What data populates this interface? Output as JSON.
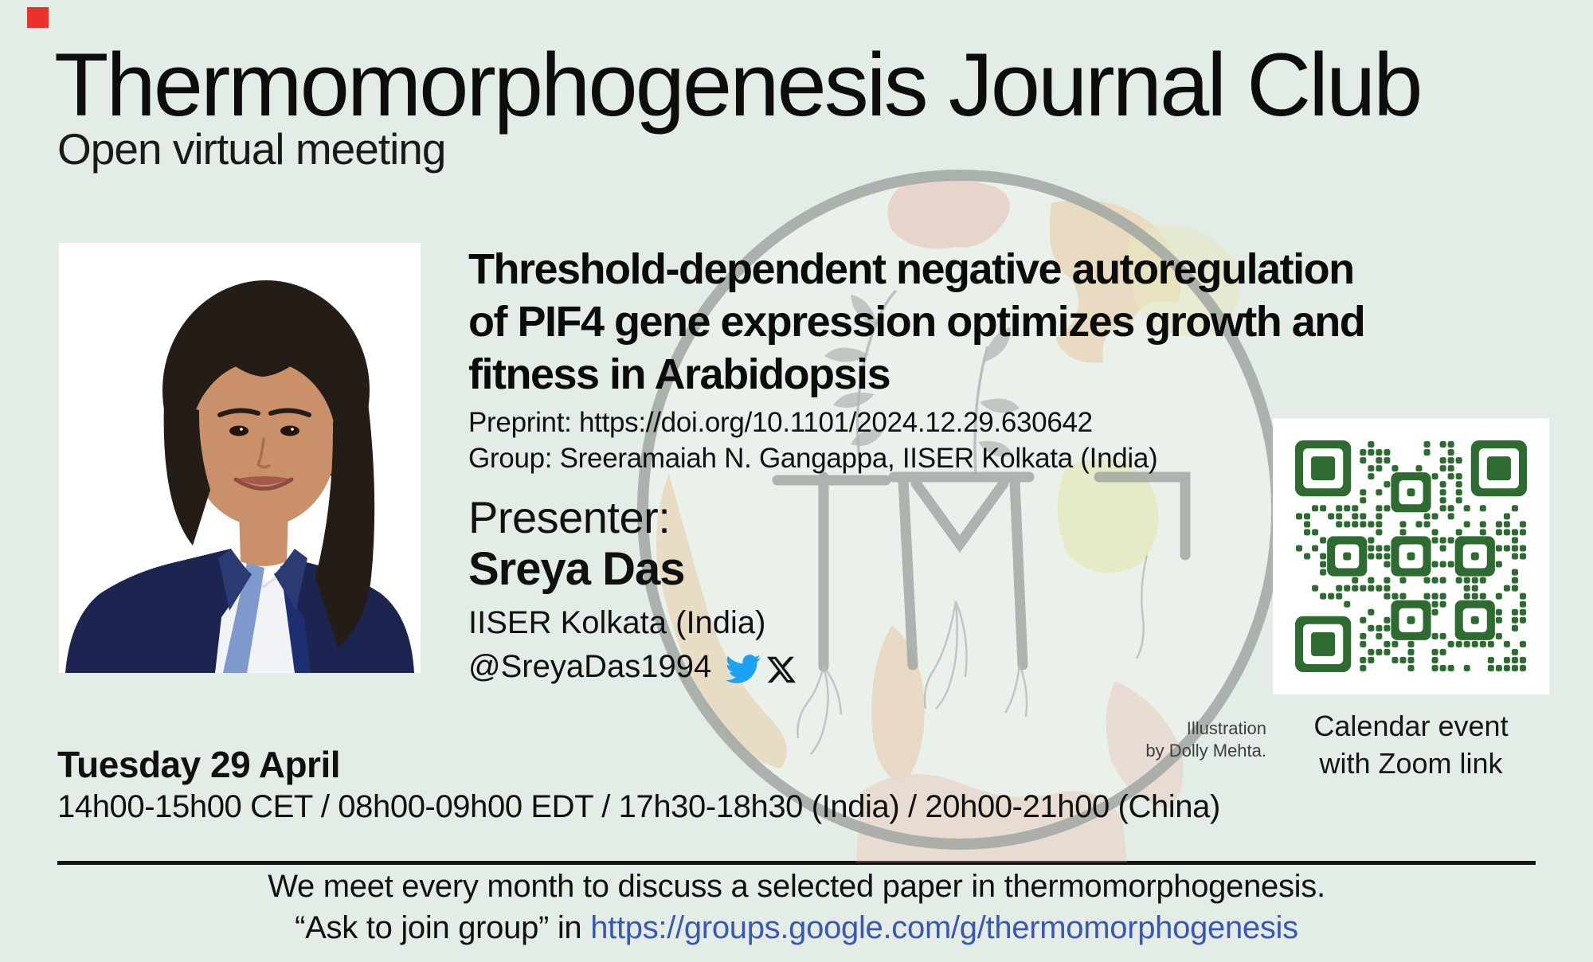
{
  "page": {
    "bg": "#e3ece5",
    "marker_color": "#e9322b"
  },
  "header": {
    "title": "Thermomorphogenesis Journal Club",
    "subtitle": "Open virtual meeting"
  },
  "paper": {
    "title_lines": [
      "Threshold-dependent negative autoregulation",
      "of PIF4 gene expression optimizes growth and",
      "fitness in Arabidopsis"
    ],
    "preprint": "Preprint: https://doi.org/10.1101/2024.12.29.630642",
    "group": "Group: Sreeramaiah N. Gangappa, IISER Kolkata (India)"
  },
  "presenter": {
    "label": "Presenter:",
    "name": "Sreya Das",
    "affiliation": "IISER Kolkata (India)",
    "handle": "@SreyaDas1994"
  },
  "icons": {
    "twitter_bird_color": "#1da1f2",
    "x_color": "#0f1419"
  },
  "qr": {
    "color": "#2d6b31",
    "caption_lines": [
      "Calendar event",
      "with Zoom link"
    ]
  },
  "illustration_credit": {
    "lines": [
      "Illustration",
      "by Dolly Mehta."
    ]
  },
  "schedule": {
    "date": "Tuesday 29 April",
    "times": "14h00-15h00 CET / 08h00-09h00 EDT / 17h30-18h30 (India) / 20h00-21h00 (China)"
  },
  "footer": {
    "line1": "We meet every month to discuss a selected paper in thermomorphogenesis.",
    "line2_prefix": "“Ask to join group” in ",
    "line2_link": "https://groups.google.com/g/thermomorphogenesis",
    "link_color": "#3a57b8"
  }
}
